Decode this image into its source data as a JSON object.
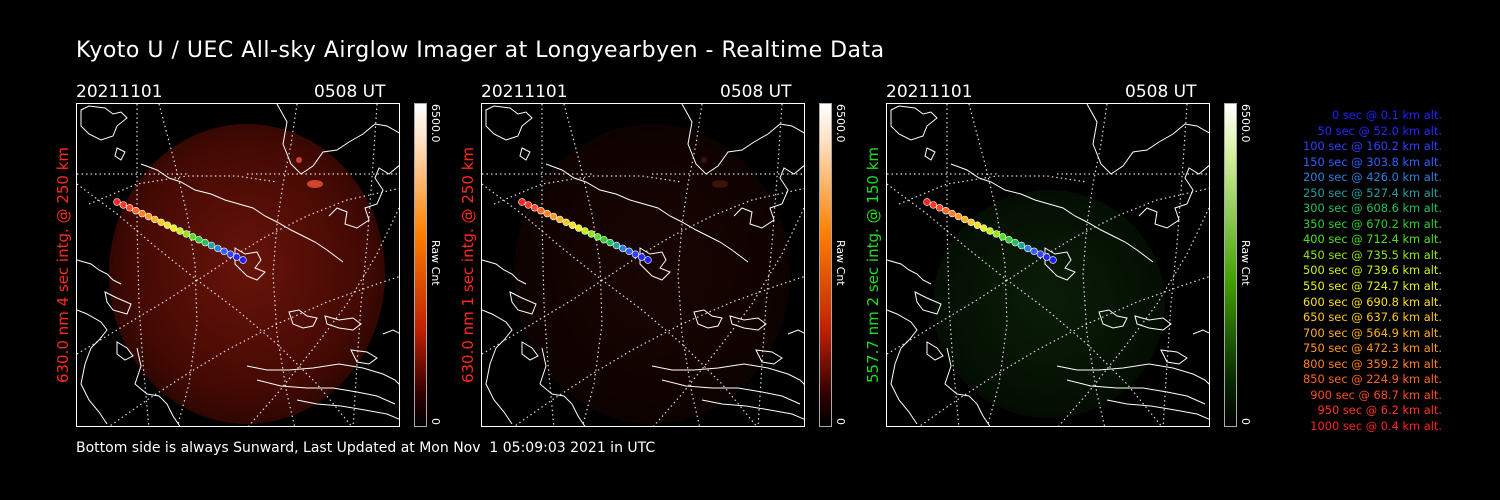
{
  "title": "Kyoto U / UEC All-sky Airglow Imager at Longyearbyen - Realtime Data",
  "footer": "Bottom side is always Sunward, Last Updated at Mon Nov  1 05:09:03 2021 in UTC",
  "colors": {
    "red_label": "#ff2a1a",
    "green_label": "#22dd22"
  },
  "panels": [
    {
      "date": "20211101",
      "time": "0508 UT",
      "ylabel": "630.0 nm 4 sec intg. @ 250 km",
      "label_color": "#ff2a1a",
      "cbar_max": "6500.0",
      "cbar_min": "0",
      "cbar_unit": "Raw Cnt",
      "glow": "red",
      "intensity": 0.75
    },
    {
      "date": "20211101",
      "time": "0508 UT",
      "ylabel": "630.0 nm 1 sec intg. @ 250 km",
      "label_color": "#ff2a1a",
      "cbar_max": "6500.0",
      "cbar_min": "0",
      "cbar_unit": "Raw Cnt",
      "glow": "red",
      "intensity": 0.18
    },
    {
      "date": "20211101",
      "time": "0508 UT",
      "ylabel": "557.7 nm 2 sec intg. @ 150 km",
      "label_color": "#22dd22",
      "cbar_max": "6500.0",
      "cbar_min": "0",
      "cbar_unit": "Raw Cnt",
      "glow": "green",
      "intensity": 0.4
    }
  ],
  "trajectory": [
    {
      "t": "0 sec",
      "alt": "0.1 km alt.",
      "color": "#2020ff"
    },
    {
      "t": "50 sec",
      "alt": "52.0 km alt.",
      "color": "#2626ff"
    },
    {
      "t": "100 sec",
      "alt": "160.2 km alt.",
      "color": "#2e42ff"
    },
    {
      "t": "150 sec",
      "alt": "303.8 km alt.",
      "color": "#3260ff"
    },
    {
      "t": "200 sec",
      "alt": "426.0 km alt.",
      "color": "#2a80e0"
    },
    {
      "t": "250 sec",
      "alt": "527.4 km alt.",
      "color": "#22a0a0"
    },
    {
      "t": "300 sec",
      "alt": "608.6 km alt.",
      "color": "#22c060"
    },
    {
      "t": "350 sec",
      "alt": "670.2 km alt.",
      "color": "#30d030"
    },
    {
      "t": "400 sec",
      "alt": "712.4 km alt.",
      "color": "#50e020"
    },
    {
      "t": "450 sec",
      "alt": "735.5 km alt.",
      "color": "#90e818"
    },
    {
      "t": "500 sec",
      "alt": "739.6 km alt.",
      "color": "#c8f018"
    },
    {
      "t": "550 sec",
      "alt": "724.7 km alt.",
      "color": "#e8f020"
    },
    {
      "t": "600 sec",
      "alt": "690.8 km alt.",
      "color": "#f8e020"
    },
    {
      "t": "650 sec",
      "alt": "637.6 km alt.",
      "color": "#ffc820"
    },
    {
      "t": "700 sec",
      "alt": "564.9 km alt.",
      "color": "#ffb020"
    },
    {
      "t": "750 sec",
      "alt": "472.3 km alt.",
      "color": "#ff9820"
    },
    {
      "t": "800 sec",
      "alt": "359.2 km alt.",
      "color": "#ff8020"
    },
    {
      "t": "850 sec",
      "alt": "224.9 km alt.",
      "color": "#ff6420"
    },
    {
      "t": "900 sec",
      "alt": "68.7 km alt.",
      "color": "#ff4a20"
    },
    {
      "t": "950 sec",
      "alt": "6.2 km alt.",
      "color": "#ff3420"
    },
    {
      "t": "1000 sec",
      "alt": "0.4 km alt.",
      "color": "#ff2020"
    }
  ]
}
